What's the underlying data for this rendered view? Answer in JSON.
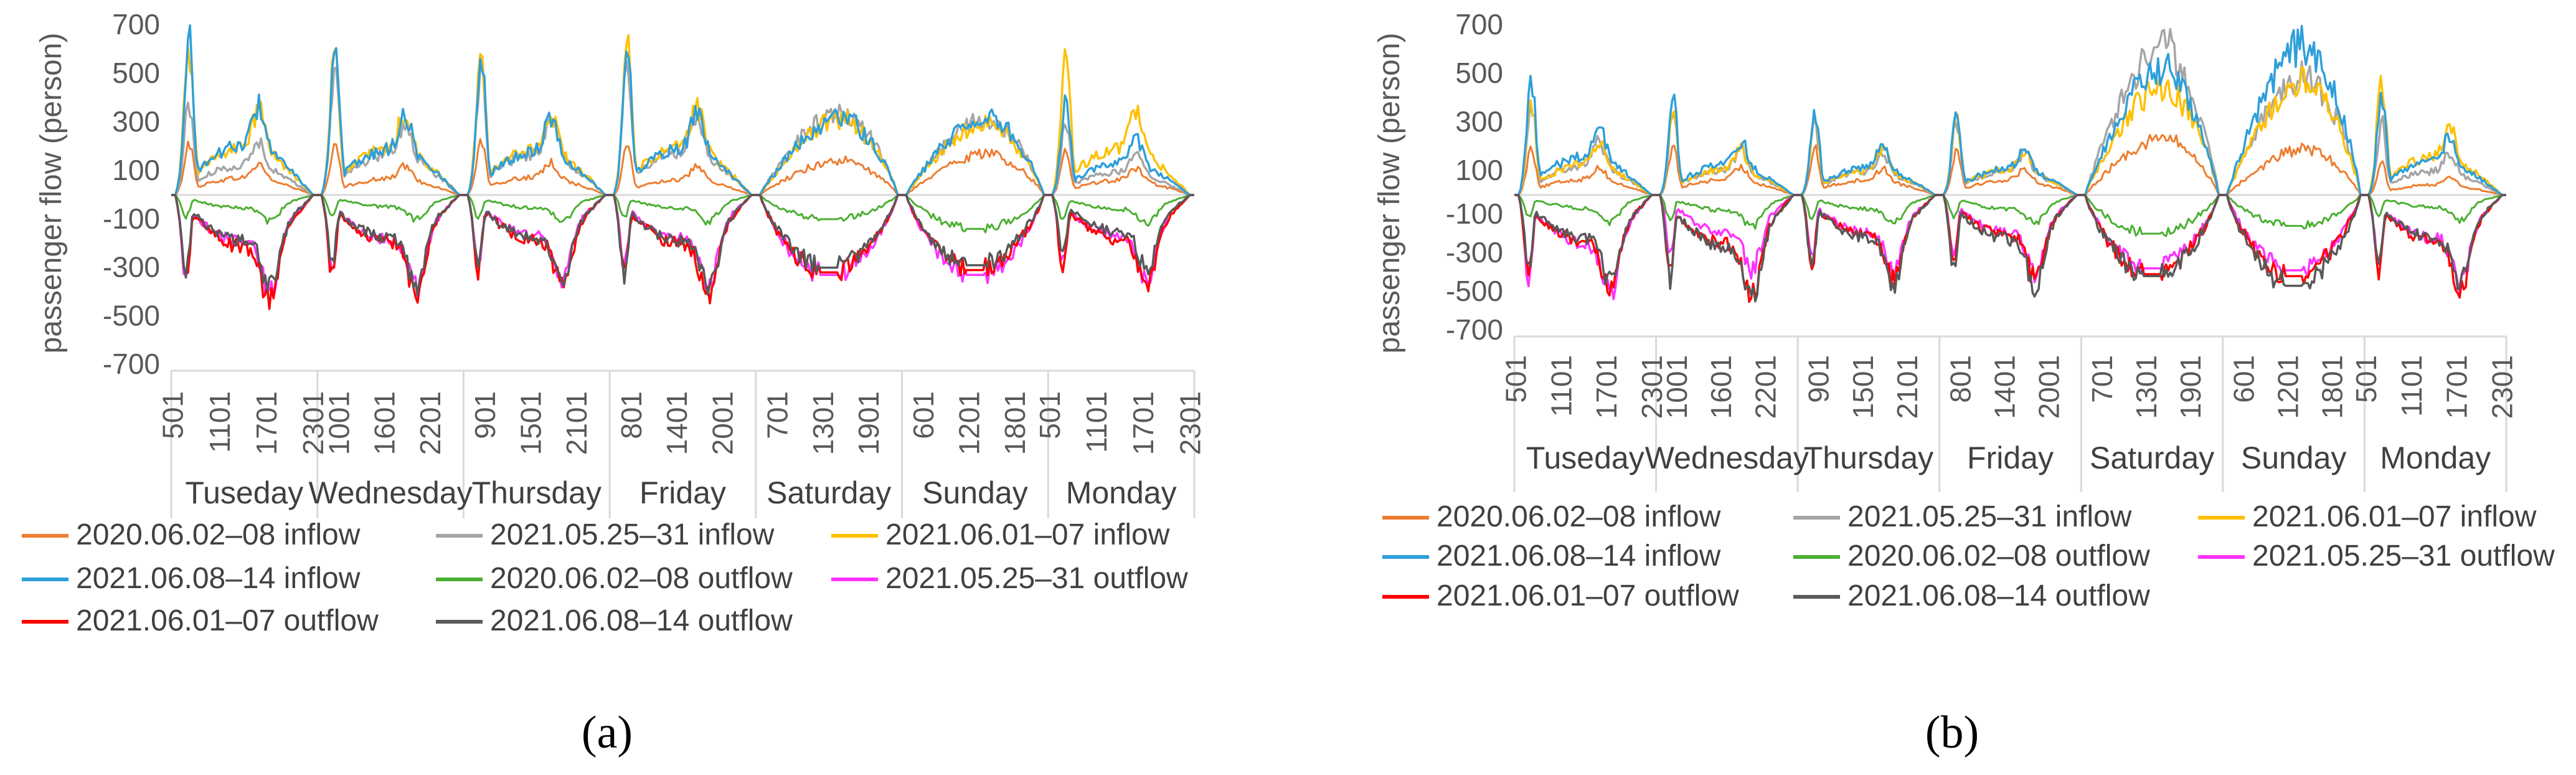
{
  "chart_data": [
    {
      "panel": "a",
      "caption": "(a)",
      "type": "line",
      "ylabel": "passenger flow (person)",
      "yticks": [
        700,
        500,
        300,
        100,
        -100,
        -300,
        -500,
        -700
      ],
      "ylim": [
        -700,
        700
      ],
      "days": [
        {
          "name": "Tuseday",
          "ticks": [
            "501",
            "1101",
            "1701",
            "2301"
          ]
        },
        {
          "name": "Wednesday",
          "ticks": [
            "1001",
            "1601",
            "2201"
          ]
        },
        {
          "name": "Thursday",
          "ticks": [
            "901",
            "1501",
            "2101"
          ]
        },
        {
          "name": "Friday",
          "ticks": [
            "801",
            "1401",
            "2001"
          ]
        },
        {
          "name": "Saturday",
          "ticks": [
            "701",
            "1301",
            "1901"
          ]
        },
        {
          "name": "Sunday",
          "ticks": [
            "601",
            "1201",
            "1801"
          ]
        },
        {
          "name": "Monday",
          "ticks": [
            "501",
            "1101",
            "1701",
            "2301"
          ]
        }
      ],
      "series_peaks": {
        "note": "approximate daily peak values (data units) per series",
        "2020.06.02–08 inflow": [
          220,
          210,
          230,
          200,
          150,
          180,
          190
        ],
        "2021.05.25–31 inflow": [
          380,
          520,
          520,
          550,
          360,
          330,
          290
        ],
        "2021.06.01–07 inflow": [
          610,
          590,
          580,
          620,
          330,
          310,
          600
        ],
        "2021.06.08–14 inflow": [
          640,
          580,
          560,
          590,
          340,
          340,
          410
        ],
        "2020.06.02–08 outflow": [
          -120,
          -110,
          -120,
          -120,
          -100,
          -140,
          -130
        ],
        "2021.05.25–31 outflow": [
          -440,
          -420,
          -380,
          -400,
          -330,
          -330,
          -380
        ],
        "2021.06.01–07 outflow": [
          -480,
          -430,
          -410,
          -450,
          -320,
          -310,
          -410
        ],
        "2021.06.08–14 outflow": [
          -420,
          -400,
          -390,
          -430,
          -300,
          -290,
          -340
        ]
      }
    },
    {
      "panel": "b",
      "caption": "(b)",
      "type": "line",
      "ylabel": "passenger flow (person)",
      "yticks": [
        700,
        500,
        300,
        100,
        -100,
        -300,
        -500,
        -700
      ],
      "ylim": [
        -700,
        700
      ],
      "days": [
        {
          "name": "Tuseday",
          "ticks": [
            "501",
            "1101",
            "1701",
            "2301"
          ]
        },
        {
          "name": "Wednesday",
          "ticks": [
            "1001",
            "1601",
            "2201"
          ]
        },
        {
          "name": "Thursday",
          "ticks": [
            "901",
            "1501",
            "2101"
          ]
        },
        {
          "name": "Friday",
          "ticks": [
            "801",
            "1401",
            "2001"
          ]
        },
        {
          "name": "Saturday",
          "ticks": [
            "701",
            "1301",
            "1901"
          ]
        },
        {
          "name": "Sunday",
          "ticks": [
            "601",
            "1201",
            "1801"
          ]
        },
        {
          "name": "Monday",
          "ticks": [
            "501",
            "1101",
            "1701",
            "2301"
          ]
        }
      ],
      "series_peaks": {
        "note": "approximate daily peak values (data units) per series",
        "2020.06.02–08 inflow": [
          200,
          200,
          190,
          190,
          250,
          200,
          130
        ],
        "2021.05.25–31 inflow": [
          380,
          320,
          300,
          300,
          650,
          520,
          300
        ],
        "2021.06.01–07 inflow": [
          390,
          330,
          320,
          320,
          470,
          500,
          490
        ],
        "2021.06.08–14 inflow": [
          490,
          390,
          350,
          340,
          550,
          660,
          420
        ],
        "2020.06.02–08 outflow": [
          -150,
          -180,
          -160,
          -160,
          -200,
          -160,
          -140
        ],
        "2021.05.25–31 outflow": [
          -560,
          -420,
          -440,
          -430,
          -380,
          -390,
          -500
        ],
        "2021.06.01–07 outflow": [
          -540,
          -560,
          -470,
          -480,
          -410,
          -420,
          -540
        ],
        "2021.06.08–14 outflow": [
          -500,
          -590,
          -500,
          -520,
          -420,
          -470,
          -500
        ]
      }
    }
  ],
  "legend": [
    {
      "label": "2020.06.02–08 inflow",
      "color": "#ED7D31"
    },
    {
      "label": "2021.05.25–31 inflow",
      "color": "#A5A5A5"
    },
    {
      "label": "2021.06.01–07 inflow",
      "color": "#FFC000"
    },
    {
      "label": "2021.06.08–14 inflow",
      "color": "#2E9FD9"
    },
    {
      "label": "2020.06.02–08 outflow",
      "color": "#4CAF33"
    },
    {
      "label": "2021.05.25–31 outflow",
      "color": "#FF33FF"
    },
    {
      "label": "2021.06.01–07 outflow",
      "color": "#FF0000"
    },
    {
      "label": "2021.06.08–14 outflow",
      "color": "#595959"
    }
  ]
}
